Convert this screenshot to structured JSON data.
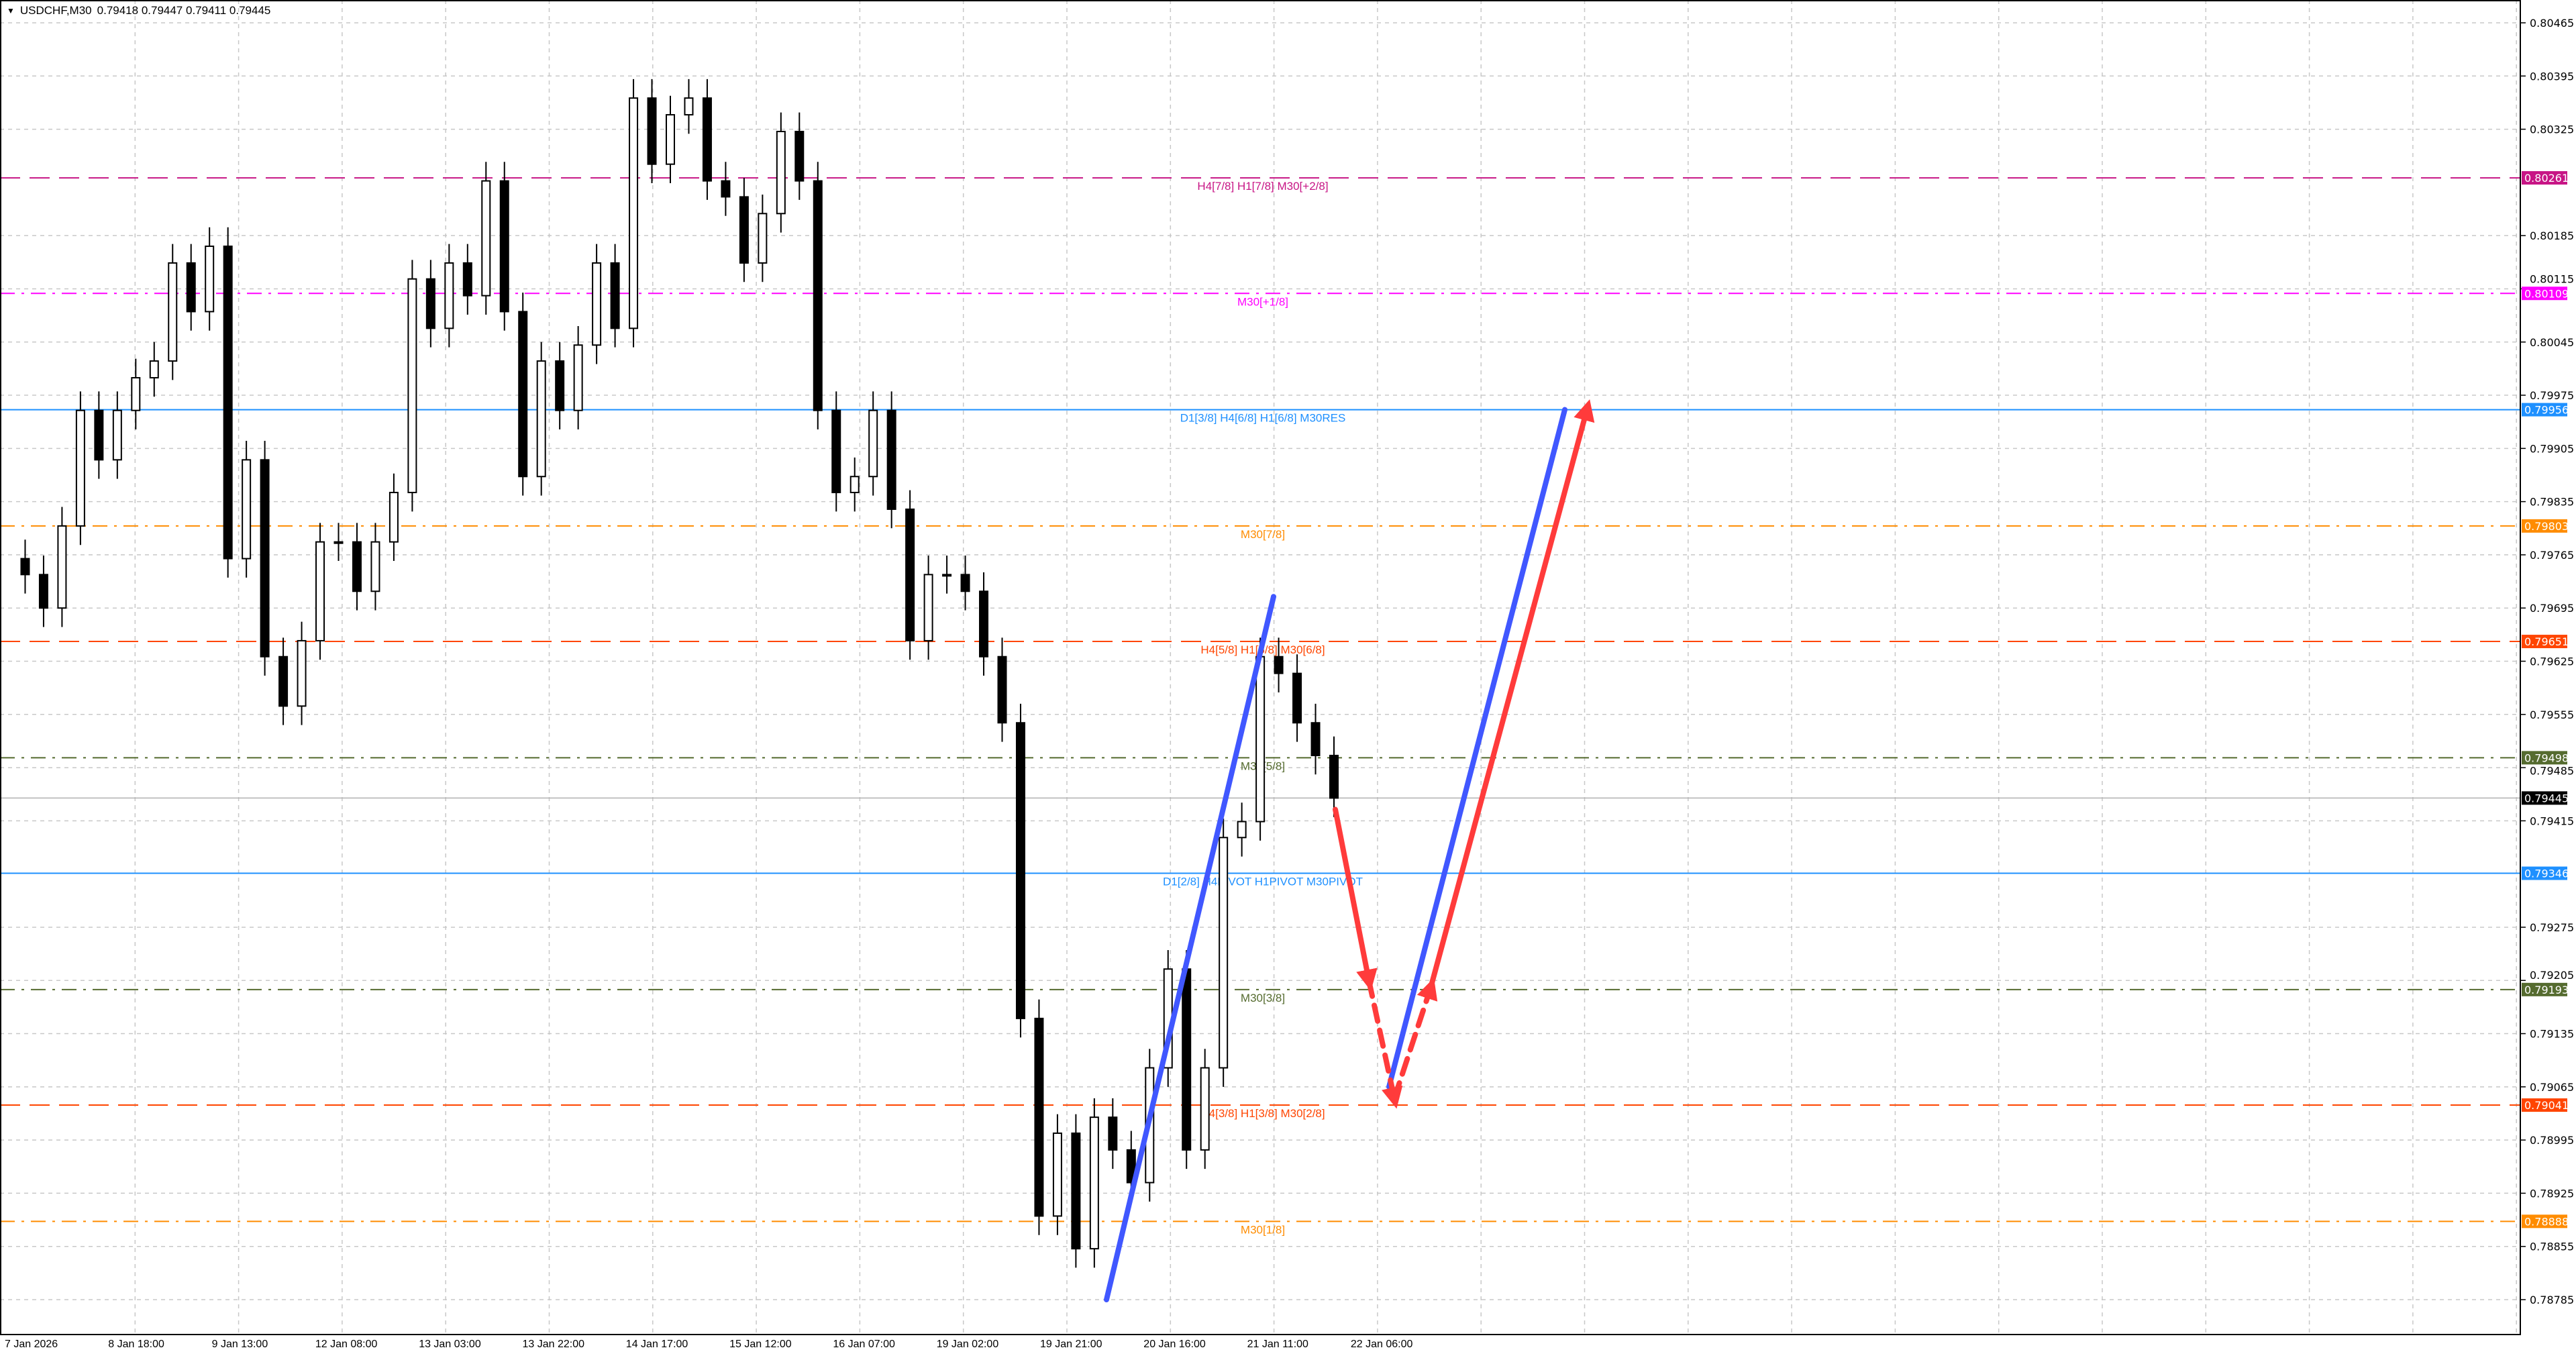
{
  "header": {
    "symbol": "USDCHF,M30",
    "ohlc": "0.79418 0.79447 0.79411 0.79445"
  },
  "chart_data": {
    "type": "candlestick",
    "symbol": "USDCHF",
    "timeframe": "M30",
    "ylim": [
      0.7875,
      0.8049
    ],
    "y_ticks": [
      "0.80465",
      "0.80395",
      "0.80325",
      "0.80185",
      "0.80115",
      "0.80045",
      "0.79975",
      "0.79905",
      "0.79835",
      "0.79765",
      "0.79695",
      "0.79625",
      "0.79555",
      "0.79485",
      "0.79415",
      "0.79275",
      "0.79205",
      "0.79135",
      "0.79065",
      "0.78995",
      "0.78925",
      "0.78855",
      "0.78785"
    ],
    "x_ticks": [
      "7 Jan 2026",
      "8 Jan 18:00",
      "9 Jan 13:00",
      "12 Jan 08:00",
      "13 Jan 03:00",
      "13 Jan 22:00",
      "14 Jan 17:00",
      "15 Jan 12:00",
      "16 Jan 07:00",
      "19 Jan 02:00",
      "19 Jan 21:00",
      "20 Jan 16:00",
      "21 Jan 11:00",
      "22 Jan 06:00"
    ],
    "grid": true,
    "approx_closes": [
      0.7976,
      0.79739,
      0.79695,
      0.79803,
      0.79955,
      0.7989,
      0.79955,
      0.79998,
      0.8002,
      0.80149,
      0.80085,
      0.80171,
      0.7976,
      0.7989,
      0.79631,
      0.79566,
      0.79652,
      0.79782,
      0.79782,
      0.79717,
      0.79782,
      0.79847,
      0.80128,
      0.80063,
      0.80149,
      0.80106,
      0.80257,
      0.80085,
      0.79868,
      0.8002,
      0.79955,
      0.80041,
      0.80149,
      0.80063,
      0.80366,
      0.80279,
      0.80344,
      0.80366,
      0.80257,
      0.80236,
      0.80149,
      0.80214,
      0.80322,
      0.80257,
      0.79955,
      0.79847,
      0.79868,
      0.79955,
      0.79825,
      0.79652,
      0.79739,
      0.79739,
      0.79717,
      0.79631,
      0.79544,
      0.79155,
      0.78895,
      0.79004,
      0.78852,
      0.79025,
      0.78982,
      0.78939,
      0.7909,
      0.7922,
      0.78982,
      0.7909,
      0.79393,
      0.79414,
      0.79631,
      0.79609,
      0.79544,
      0.79501,
      0.79445
    ],
    "current_price": {
      "value": 0.79445,
      "label": "0.79445",
      "color": "#000000"
    },
    "levels": [
      {
        "price": 0.80261,
        "price_label": "0.80261",
        "text": "H4[7/8] H1[7/8] M30[+2/8]",
        "color": "#C71585",
        "style": "dashed"
      },
      {
        "price": 0.80109,
        "price_label": "0.80109",
        "text": "M30[+1/8]",
        "color": "#FF00FF",
        "style": "dashdot"
      },
      {
        "price": 0.79956,
        "price_label": "0.79956",
        "text": "D1[3/8] H4[6/8] H1[6/8] M30RES",
        "color": "#1E90FF",
        "style": "solid"
      },
      {
        "price": 0.79803,
        "price_label": "0.79803",
        "text": "M30[7/8]",
        "color": "#FF8C00",
        "style": "dashdot"
      },
      {
        "price": 0.79651,
        "price_label": "0.79651",
        "text": "H4[5/8] H1[5/8] M30[6/8]",
        "color": "#FF4500",
        "style": "dashed"
      },
      {
        "price": 0.79498,
        "price_label": "0.79498",
        "text": "M30[5/8]",
        "color": "#556B2F",
        "style": "dashdot"
      },
      {
        "price": 0.79346,
        "price_label": "0.79346",
        "text": "D1[2/8] H4PIVOT H1PIVOT M30PIVOT",
        "color": "#1E90FF",
        "style": "solid"
      },
      {
        "price": 0.79193,
        "price_label": "0.79193",
        "text": "M30[3/8]",
        "color": "#556B2F",
        "style": "dashdot"
      },
      {
        "price": 0.79041,
        "price_label": "0.79041",
        "text": "H4[3/8] H1[3/8] M30[2/8]",
        "color": "#FF4500",
        "style": "dashed"
      },
      {
        "price": 0.78888,
        "price_label": "0.78888",
        "text": "M30[1/8]",
        "color": "#FF8C00",
        "style": "dashdot"
      }
    ],
    "annotations": {
      "blue_color": "#4057FF",
      "red_color": "#FF3B3B",
      "blue_lines": [
        [
          0.78785,
          0.7971
        ],
        [
          0.79065,
          0.79956
        ]
      ],
      "red_path_prices": [
        0.7943,
        0.79205,
        0.7905,
        0.79195,
        0.79956
      ]
    }
  }
}
